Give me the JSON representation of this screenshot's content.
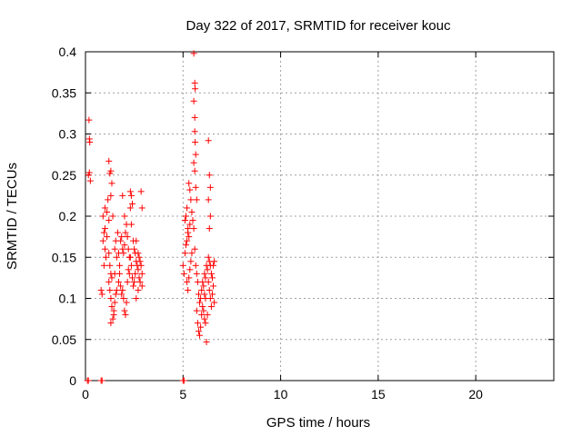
{
  "chart_data": {
    "type": "scatter",
    "title": "Day 322 of 2017, SRMTID for receiver kouc",
    "xlabel": "GPS time / hours",
    "ylabel": "SRMTID / TECUs",
    "xlim": [
      0,
      24
    ],
    "ylim": [
      0,
      0.4
    ],
    "x_ticks": [
      "0",
      "5",
      "10",
      "15",
      "20"
    ],
    "y_ticks": [
      "0",
      "0.05",
      "0.1",
      "0.15",
      "0.2",
      "0.25",
      "0.3",
      "0.35",
      "0.4"
    ],
    "grid": true,
    "legend": "none",
    "marker": "+",
    "color": "#ff0000",
    "series": [
      {
        "points": [
          [
            0.1,
            0.0
          ],
          [
            0.15,
            0.0
          ],
          [
            0.8,
            0.0
          ],
          [
            0.85,
            0.0
          ],
          [
            5.0,
            0.0
          ],
          [
            5.05,
            0.0
          ],
          [
            0.18,
            0.317
          ],
          [
            0.2,
            0.294
          ],
          [
            0.22,
            0.29
          ],
          [
            0.15,
            0.25
          ],
          [
            0.2,
            0.253
          ],
          [
            0.25,
            0.243
          ],
          [
            0.8,
            0.11
          ],
          [
            0.85,
            0.105
          ],
          [
            0.9,
            0.2
          ],
          [
            0.95,
            0.18
          ],
          [
            1.0,
            0.16
          ],
          [
            1.05,
            0.15
          ],
          [
            0.9,
            0.17
          ],
          [
            0.95,
            0.14
          ],
          [
            1.0,
            0.185
          ],
          [
            1.1,
            0.205
          ],
          [
            1.15,
            0.22
          ],
          [
            1.2,
            0.195
          ],
          [
            1.0,
            0.21
          ],
          [
            1.1,
            0.175
          ],
          [
            1.2,
            0.155
          ],
          [
            1.25,
            0.14
          ],
          [
            1.3,
            0.13
          ],
          [
            1.35,
            0.125
          ],
          [
            1.2,
            0.267
          ],
          [
            1.25,
            0.252
          ],
          [
            1.3,
            0.255
          ],
          [
            1.35,
            0.24
          ],
          [
            1.3,
            0.225
          ],
          [
            1.4,
            0.2
          ],
          [
            1.2,
            0.12
          ],
          [
            1.25,
            0.11
          ],
          [
            1.3,
            0.1
          ],
          [
            1.35,
            0.09
          ],
          [
            1.4,
            0.075
          ],
          [
            1.45,
            0.08
          ],
          [
            1.3,
            0.07
          ],
          [
            1.45,
            0.085
          ],
          [
            1.5,
            0.095
          ],
          [
            1.55,
            0.105
          ],
          [
            1.6,
            0.11
          ],
          [
            1.5,
            0.13
          ],
          [
            1.5,
            0.16
          ],
          [
            1.55,
            0.17
          ],
          [
            1.6,
            0.15
          ],
          [
            1.65,
            0.18
          ],
          [
            1.7,
            0.155
          ],
          [
            1.75,
            0.14
          ],
          [
            1.7,
            0.12
          ],
          [
            1.75,
            0.13
          ],
          [
            1.8,
            0.115
          ],
          [
            1.85,
            0.105
          ],
          [
            1.9,
            0.11
          ],
          [
            1.95,
            0.1
          ],
          [
            1.8,
            0.17
          ],
          [
            1.85,
            0.175
          ],
          [
            1.9,
            0.16
          ],
          [
            1.95,
            0.155
          ],
          [
            2.0,
            0.165
          ],
          [
            2.05,
            0.18
          ],
          [
            1.9,
            0.225
          ],
          [
            2.0,
            0.2
          ],
          [
            2.1,
            0.19
          ],
          [
            2.15,
            0.175
          ],
          [
            2.2,
            0.16
          ],
          [
            2.25,
            0.15
          ],
          [
            2.0,
            0.085
          ],
          [
            2.05,
            0.08
          ],
          [
            2.1,
            0.095
          ],
          [
            2.15,
            0.12
          ],
          [
            2.2,
            0.135
          ],
          [
            2.25,
            0.13
          ],
          [
            2.3,
            0.21
          ],
          [
            2.35,
            0.225
          ],
          [
            2.3,
            0.23
          ],
          [
            2.4,
            0.215
          ],
          [
            2.35,
            0.19
          ],
          [
            2.45,
            0.17
          ],
          [
            2.3,
            0.15
          ],
          [
            2.35,
            0.14
          ],
          [
            2.4,
            0.125
          ],
          [
            2.45,
            0.115
          ],
          [
            2.5,
            0.12
          ],
          [
            2.55,
            0.13
          ],
          [
            2.5,
            0.16
          ],
          [
            2.55,
            0.155
          ],
          [
            2.6,
            0.145
          ],
          [
            2.65,
            0.14
          ],
          [
            2.7,
            0.135
          ],
          [
            2.75,
            0.125
          ],
          [
            2.6,
            0.17
          ],
          [
            2.7,
            0.155
          ],
          [
            2.75,
            0.15
          ],
          [
            2.8,
            0.145
          ],
          [
            2.85,
            0.14
          ],
          [
            2.9,
            0.13
          ],
          [
            2.85,
            0.23
          ],
          [
            2.9,
            0.21
          ],
          [
            2.8,
            0.12
          ],
          [
            2.9,
            0.115
          ],
          [
            2.7,
            0.11
          ],
          [
            2.6,
            0.1
          ],
          [
            5.0,
            0.14
          ],
          [
            5.05,
            0.13
          ],
          [
            5.1,
            0.155
          ],
          [
            5.15,
            0.165
          ],
          [
            5.2,
            0.17
          ],
          [
            5.25,
            0.18
          ],
          [
            5.1,
            0.195
          ],
          [
            5.15,
            0.2
          ],
          [
            5.2,
            0.21
          ],
          [
            5.25,
            0.185
          ],
          [
            5.3,
            0.175
          ],
          [
            5.35,
            0.19
          ],
          [
            5.2,
            0.12
          ],
          [
            5.25,
            0.11
          ],
          [
            5.3,
            0.125
          ],
          [
            5.35,
            0.135
          ],
          [
            5.4,
            0.145
          ],
          [
            5.45,
            0.155
          ],
          [
            5.3,
            0.24
          ],
          [
            5.35,
            0.232
          ],
          [
            5.4,
            0.22
          ],
          [
            5.45,
            0.205
          ],
          [
            5.5,
            0.195
          ],
          [
            5.55,
            0.185
          ],
          [
            5.55,
            0.398
          ],
          [
            5.6,
            0.362
          ],
          [
            5.62,
            0.355
          ],
          [
            5.55,
            0.34
          ],
          [
            5.6,
            0.32
          ],
          [
            5.6,
            0.303
          ],
          [
            5.62,
            0.29
          ],
          [
            5.65,
            0.275
          ],
          [
            5.55,
            0.265
          ],
          [
            5.6,
            0.255
          ],
          [
            5.65,
            0.235
          ],
          [
            5.7,
            0.22
          ],
          [
            5.6,
            0.16
          ],
          [
            5.65,
            0.14
          ],
          [
            5.7,
            0.13
          ],
          [
            5.75,
            0.12
          ],
          [
            5.8,
            0.105
          ],
          [
            5.85,
            0.095
          ],
          [
            5.7,
            0.085
          ],
          [
            5.75,
            0.07
          ],
          [
            5.8,
            0.06
          ],
          [
            5.85,
            0.055
          ],
          [
            5.9,
            0.065
          ],
          [
            5.95,
            0.08
          ],
          [
            5.9,
            0.1
          ],
          [
            5.95,
            0.11
          ],
          [
            6.0,
            0.12
          ],
          [
            6.05,
            0.115
          ],
          [
            6.1,
            0.105
          ],
          [
            6.15,
            0.1
          ],
          [
            6.0,
            0.09
          ],
          [
            6.05,
            0.085
          ],
          [
            6.1,
            0.075
          ],
          [
            6.15,
            0.07
          ],
          [
            6.2,
            0.047
          ],
          [
            6.25,
            0.08
          ],
          [
            6.1,
            0.13
          ],
          [
            6.15,
            0.125
          ],
          [
            6.2,
            0.14
          ],
          [
            6.25,
            0.135
          ],
          [
            6.3,
            0.12
          ],
          [
            6.35,
            0.11
          ],
          [
            6.3,
            0.292
          ],
          [
            6.35,
            0.25
          ],
          [
            6.4,
            0.235
          ],
          [
            6.3,
            0.22
          ],
          [
            6.4,
            0.2
          ],
          [
            6.35,
            0.185
          ],
          [
            6.3,
            0.15
          ],
          [
            6.35,
            0.145
          ],
          [
            6.4,
            0.14
          ],
          [
            6.45,
            0.13
          ],
          [
            6.5,
            0.125
          ],
          [
            6.55,
            0.14
          ],
          [
            6.4,
            0.1
          ],
          [
            6.45,
            0.09
          ],
          [
            6.5,
            0.105
          ],
          [
            6.55,
            0.115
          ],
          [
            6.6,
            0.095
          ],
          [
            6.6,
            0.145
          ]
        ]
      }
    ]
  }
}
